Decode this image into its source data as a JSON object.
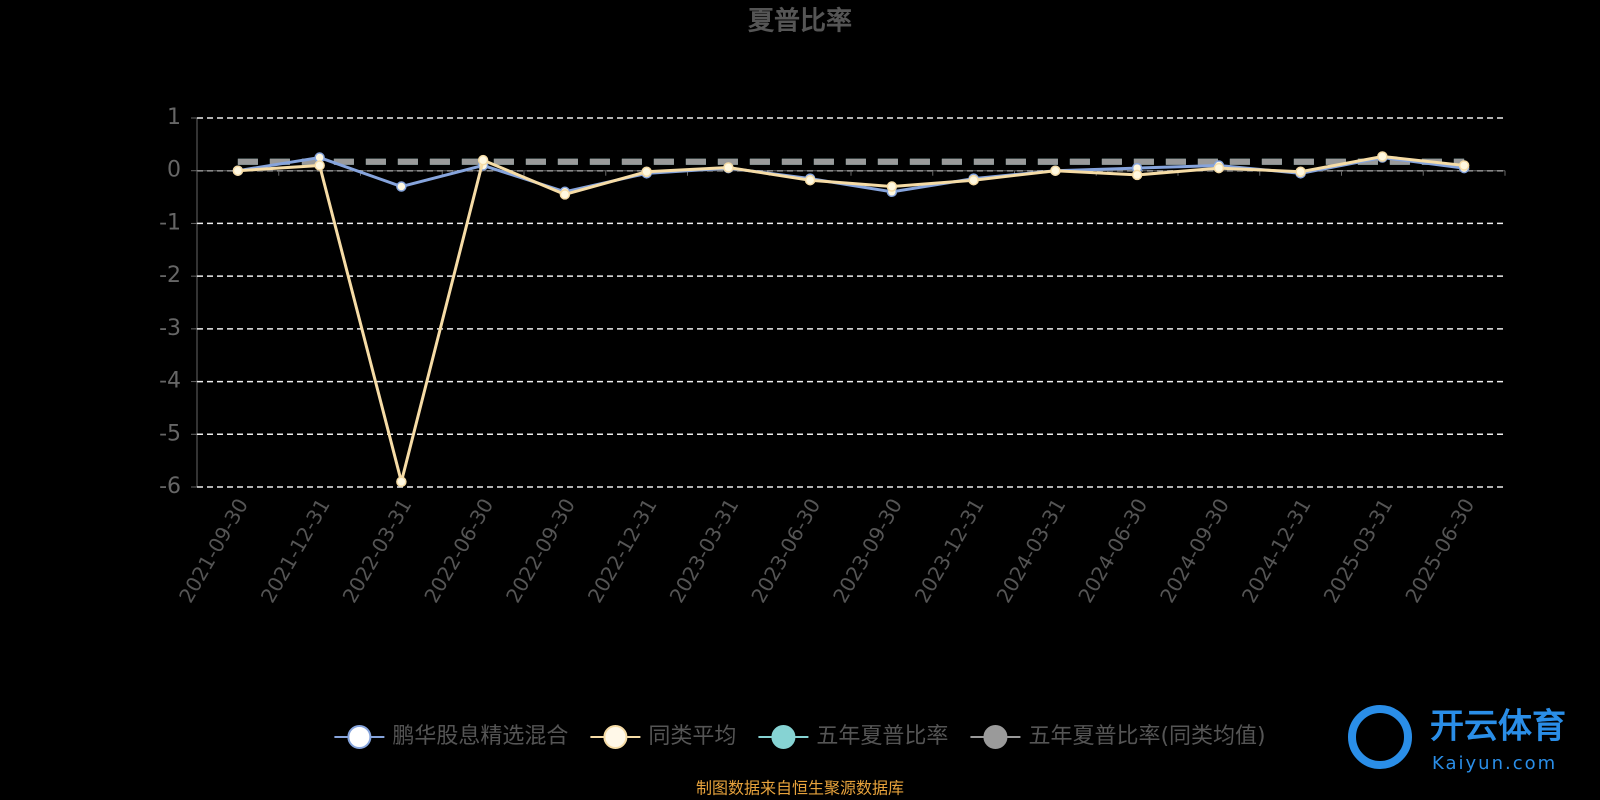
{
  "chart_data": {
    "type": "line",
    "title": "夏普比率",
    "categories": [
      "2021-09-30",
      "2021-12-31",
      "2022-03-31",
      "2022-06-30",
      "2022-09-30",
      "2022-12-31",
      "2023-03-31",
      "2023-06-30",
      "2023-09-30",
      "2023-12-31",
      "2024-03-31",
      "2024-06-30",
      "2024-09-30",
      "2024-12-31",
      "2025-03-31",
      "2025-06-30"
    ],
    "series": [
      {
        "name": "鹏华股息精选混合",
        "color": "#86a4dc",
        "values": [
          0,
          0.25,
          -0.3,
          0.1,
          -0.4,
          -0.05,
          0.05,
          -0.15,
          -0.4,
          -0.15,
          0,
          0.05,
          0.1,
          -0.05,
          0.25,
          0.05
        ]
      },
      {
        "name": "同类平均",
        "color": "#f6dca6",
        "values": [
          0,
          0.1,
          -5.9,
          0.2,
          -0.45,
          -0.02,
          0.06,
          -0.18,
          -0.3,
          -0.18,
          0,
          -0.08,
          0.05,
          -0.02,
          0.27,
          0.1
        ]
      },
      {
        "name": "五年夏普比率",
        "color": "#86d3d3",
        "style": "dashed",
        "values": [
          0.17,
          0.17,
          0.17,
          0.17,
          0.17,
          0.17,
          0.17,
          0.17,
          0.17,
          0.17,
          0.17,
          0.17,
          0.17,
          0.17,
          0.17,
          0.17
        ]
      },
      {
        "name": "五年夏普比率(同类均值)",
        "color": "#9a9a9a",
        "style": "dashed",
        "values": [
          0.17,
          0.17,
          0.17,
          0.17,
          0.17,
          0.17,
          0.17,
          0.17,
          0.17,
          0.17,
          0.17,
          0.17,
          0.17,
          0.17,
          0.17,
          0.17
        ]
      }
    ],
    "ylim": [
      -6,
      1
    ],
    "yticks": [
      -6,
      -5,
      -4,
      -3,
      -2,
      -1,
      0,
      1
    ],
    "grid": true,
    "legend": "bottom",
    "footnote": "制图数据来自恒生聚源数据库",
    "watermark": [
      "开云体育",
      "Kaiyun.com"
    ]
  }
}
